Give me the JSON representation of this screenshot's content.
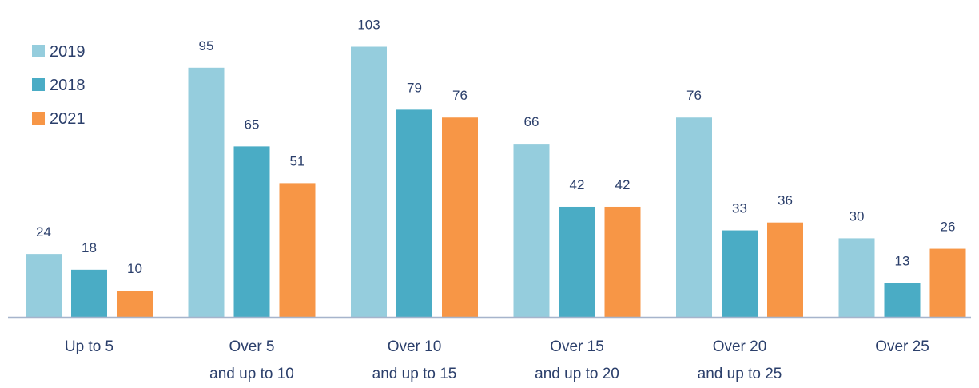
{
  "chart_data": {
    "type": "bar",
    "categories": [
      [
        "Up to 5"
      ],
      [
        "Over 5",
        "and up to 10"
      ],
      [
        "Over 10",
        "and up to 15"
      ],
      [
        "Over 15",
        "and up to 20"
      ],
      [
        "Over 20",
        "and up to 25"
      ],
      [
        "Over 25"
      ]
    ],
    "series": [
      {
        "name": "2019",
        "color": "#95cddd",
        "values": [
          24,
          95,
          103,
          66,
          76,
          30
        ]
      },
      {
        "name": "2018",
        "color": "#4aacc5",
        "values": [
          18,
          65,
          79,
          42,
          33,
          13
        ]
      },
      {
        "name": "2021",
        "color": "#f79646",
        "values": [
          10,
          51,
          76,
          42,
          36,
          26
        ]
      }
    ],
    "ylim": [
      0,
      110
    ],
    "data_labels": true,
    "legend_position": "top-left",
    "axis_color": "#a6b4cc",
    "text_color": "#2b3f6b"
  }
}
